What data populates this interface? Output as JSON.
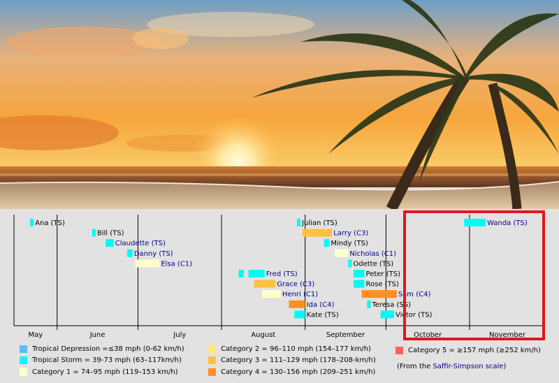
{
  "chart_data": {
    "type": "timeline",
    "title": "",
    "x_axis": {
      "months": [
        "May",
        "June",
        "July",
        "August",
        "September",
        "October",
        "November"
      ],
      "range": [
        "2021-05-16",
        "2021-11-29"
      ]
    },
    "storms": [
      {
        "name": "Ana (TS)",
        "start": "2021-05-22",
        "end": "2021-05-23",
        "category": "TS",
        "linked": false
      },
      {
        "name": "Bill (TS)",
        "start": "2021-06-14",
        "end": "2021-06-15",
        "category": "TS",
        "linked": false
      },
      {
        "name": "Claudette (TS)",
        "start": "2021-06-19",
        "end": "2021-06-22",
        "category": "TS",
        "linked": true
      },
      {
        "name": "Danny (TS)",
        "start": "2021-06-27",
        "end": "2021-06-29",
        "category": "TS",
        "linked": true
      },
      {
        "name": "Elsa (C1)",
        "start": "2021-06-30",
        "end": "2021-07-09",
        "category": "C1",
        "linked": true
      },
      {
        "name": "Fred (TS)",
        "start": "2021-08-11",
        "end": "2021-08-17",
        "category": "TS",
        "linked": true
      },
      {
        "name": "Grace (C3)",
        "start": "2021-08-13",
        "end": "2021-08-21",
        "category": "C3",
        "linked": true
      },
      {
        "name": "Henri (C1)",
        "start": "2021-08-16",
        "end": "2021-08-23",
        "category": "C1",
        "linked": true
      },
      {
        "name": "Ida (C4)",
        "start": "2021-08-26",
        "end": "2021-09-01",
        "category": "C4",
        "linked": true
      },
      {
        "name": "Kate (TS)",
        "start": "2021-08-28",
        "end": "2021-09-01",
        "category": "TS",
        "linked": false
      },
      {
        "name": "Julian (TS)",
        "start": "2021-08-29",
        "end": "2021-08-30",
        "category": "TS",
        "linked": false
      },
      {
        "name": "Larry (C3)",
        "start": "2021-08-31",
        "end": "2021-09-11",
        "category": "C3",
        "linked": true
      },
      {
        "name": "Mindy (TS)",
        "start": "2021-09-08",
        "end": "2021-09-10",
        "category": "TS",
        "linked": false
      },
      {
        "name": "Nicholas (C1)",
        "start": "2021-09-12",
        "end": "2021-09-17",
        "category": "C1",
        "linked": true
      },
      {
        "name": "Odette (TS)",
        "start": "2021-09-17",
        "end": "2021-09-18",
        "category": "TS",
        "linked": false
      },
      {
        "name": "Peter (TS)",
        "start": "2021-09-19",
        "end": "2021-09-23",
        "category": "TS",
        "linked": false
      },
      {
        "name": "Rose (TS)",
        "start": "2021-09-19",
        "end": "2021-09-23",
        "category": "TS",
        "linked": false
      },
      {
        "name": "Sam (C4)",
        "start": "2021-09-22",
        "end": "2021-10-05",
        "category": "C4",
        "linked": true
      },
      {
        "name": "Teresa (SS)",
        "start": "2021-09-24",
        "end": "2021-09-25",
        "category": "TS",
        "linked": false
      },
      {
        "name": "Victor (TS)",
        "start": "2021-09-29",
        "end": "2021-10-04",
        "category": "TS",
        "linked": false
      },
      {
        "name": "Wanda (TS)",
        "start": "2021-10-30",
        "end": "2021-11-07",
        "category": "TS",
        "linked": true
      }
    ],
    "legend": [
      {
        "key": "TD",
        "label": "Tropical Depression =≤38 mph (0-62 km/h)",
        "color": "#5ebaff"
      },
      {
        "key": "TS",
        "label": "Tropical Storm = 39-73 mph (63–117km/h)",
        "color": "#00faf4"
      },
      {
        "key": "C1",
        "label": "Category 1 = 74–95 mph (119–153 km/h)",
        "color": "#ffffcc"
      },
      {
        "key": "C2",
        "label": "Category 2 = 96–110 mph (154–177 km/h)",
        "color": "#ffe775"
      },
      {
        "key": "C3",
        "label": "Category 3 = 111–129 mph (178–208-km/h)",
        "color": "#ffc140"
      },
      {
        "key": "C4",
        "label": "Category 4 = 130–156 mph (209–251 km/h)",
        "color": "#ff8f20"
      },
      {
        "key": "C5",
        "label": "Category 5 = ≥157 mph (≥252 km/h)",
        "color": "#ff6060"
      }
    ],
    "source_note": {
      "prefix": "(From the ",
      "link": "Saffir-Simpson scale",
      "suffix": ")"
    },
    "highlight_region": {
      "start": "2021-10-01",
      "end": "2021-11-29"
    }
  }
}
